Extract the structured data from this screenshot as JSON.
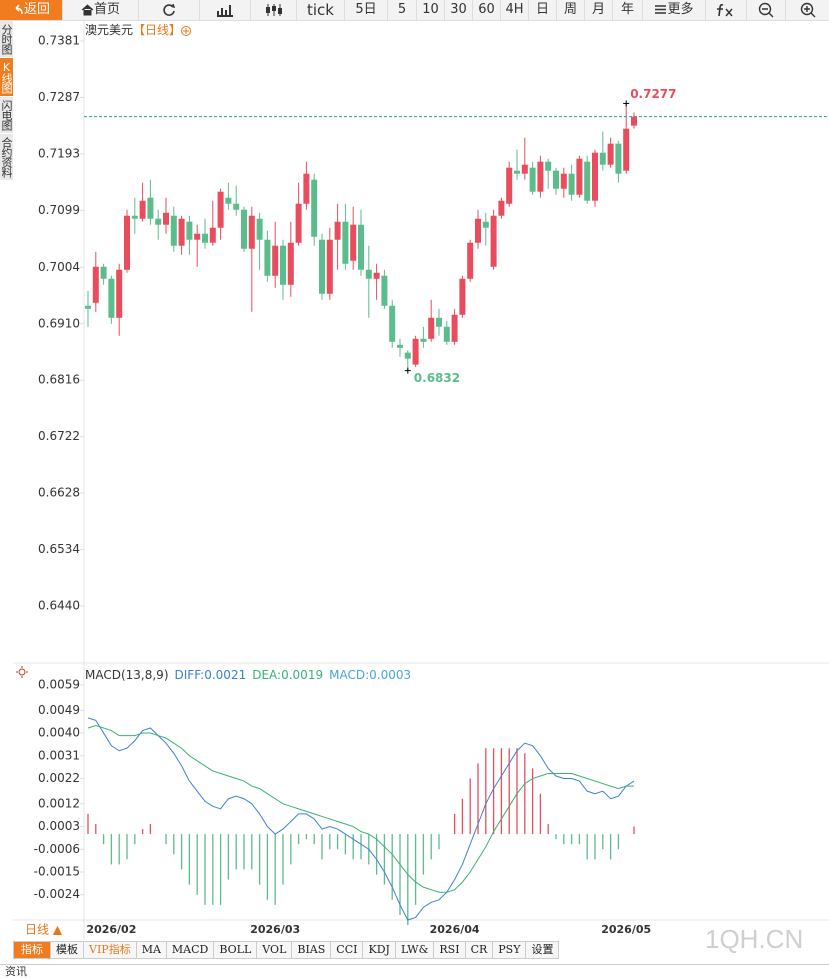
{
  "toolbar": {
    "back": "返回",
    "home": "首页",
    "periods": [
      "tick",
      "5日",
      "5",
      "10",
      "30",
      "60",
      "4H",
      "日",
      "周",
      "月",
      "年"
    ],
    "more": "更多"
  },
  "side_tabs": [
    "分时图",
    "K线图",
    "闪电图",
    "合约资料"
  ],
  "period_tab": "日线 ▲",
  "chart_data": [
    {
      "type": "candlestick",
      "title": "澳元美元",
      "period": "【日线】",
      "categories": [
        null,
        null,
        null,
        "2026/02",
        null,
        null,
        null,
        null,
        null,
        null,
        null,
        null,
        null,
        null,
        null,
        null,
        null,
        null,
        null,
        null,
        null,
        null,
        null,
        null,
        "2026/03",
        null,
        null,
        null,
        null,
        null,
        null,
        null,
        null,
        null,
        null,
        null,
        null,
        null,
        null,
        null,
        null,
        null,
        null,
        null,
        null,
        null,
        null,
        "2026/04",
        null,
        null,
        null,
        null,
        null,
        null,
        null,
        null,
        null,
        null,
        null,
        null,
        null,
        null,
        null,
        null,
        null,
        null,
        null,
        null,
        null,
        "2026/05",
        null
      ],
      "open": [
        0.694,
        0.6945,
        0.7005,
        0.6985,
        0.692,
        0.7,
        0.709,
        0.7085,
        0.712,
        0.7085,
        0.7075,
        0.709,
        0.704,
        0.708,
        0.705,
        0.706,
        0.7045,
        0.707,
        0.712,
        0.711,
        0.71,
        0.7035,
        0.7085,
        0.705,
        0.699,
        0.704,
        0.6975,
        0.7045,
        0.711,
        0.715,
        0.705,
        0.696,
        0.705,
        0.708,
        0.7015,
        0.7075,
        0.7,
        0.6985,
        0.699,
        0.694,
        0.6875,
        0.6862,
        0.6842,
        0.6885,
        0.6885,
        0.692,
        0.6905,
        0.688,
        0.6925,
        0.6985,
        0.7045,
        0.708,
        0.7005,
        0.709,
        0.711,
        0.7165,
        0.716,
        0.717,
        0.713,
        0.718,
        0.7165,
        0.7135,
        0.716,
        0.7125,
        0.718,
        0.7115,
        0.7195,
        0.7175,
        0.721,
        0.7165,
        0.724
      ],
      "high": [
        0.6965,
        0.703,
        0.701,
        0.699,
        0.701,
        0.71,
        0.712,
        0.7145,
        0.715,
        0.71,
        0.712,
        0.7105,
        0.709,
        0.709,
        0.7075,
        0.7085,
        0.7115,
        0.7135,
        0.7145,
        0.714,
        0.7105,
        0.7105,
        0.7095,
        0.7065,
        0.708,
        0.705,
        0.708,
        0.7145,
        0.718,
        0.716,
        0.706,
        0.707,
        0.711,
        0.711,
        0.7105,
        0.71,
        0.704,
        0.701,
        0.7,
        0.695,
        0.6885,
        0.6866,
        0.689,
        0.6905,
        0.695,
        0.6935,
        0.6915,
        0.6935,
        0.699,
        0.705,
        0.71,
        0.7095,
        0.71,
        0.712,
        0.718,
        0.72,
        0.722,
        0.718,
        0.719,
        0.7185,
        0.717,
        0.717,
        0.7175,
        0.719,
        0.719,
        0.72,
        0.723,
        0.722,
        0.7215,
        0.7277,
        0.7262
      ],
      "low": [
        0.6905,
        0.693,
        0.6975,
        0.691,
        0.689,
        0.6995,
        0.706,
        0.708,
        0.7075,
        0.705,
        0.706,
        0.703,
        0.7025,
        0.7025,
        0.7005,
        0.7035,
        0.704,
        0.705,
        0.71,
        0.709,
        0.703,
        0.693,
        0.7,
        0.698,
        0.697,
        0.695,
        0.6955,
        0.704,
        0.71,
        0.704,
        0.695,
        0.695,
        0.7,
        0.7,
        0.7,
        0.699,
        0.692,
        0.695,
        0.6935,
        0.687,
        0.6855,
        0.6832,
        0.6838,
        0.687,
        0.688,
        0.689,
        0.6875,
        0.6875,
        0.692,
        0.698,
        0.7035,
        0.704,
        0.7,
        0.7085,
        0.7105,
        0.715,
        0.715,
        0.7125,
        0.712,
        0.7135,
        0.7125,
        0.712,
        0.7115,
        0.712,
        0.711,
        0.7105,
        0.7165,
        0.717,
        0.7145,
        0.716,
        0.7235
      ],
      "close": [
        0.6935,
        0.7005,
        0.6985,
        0.692,
        0.7,
        0.709,
        0.7085,
        0.7115,
        0.7085,
        0.7075,
        0.7095,
        0.704,
        0.7085,
        0.705,
        0.706,
        0.7045,
        0.707,
        0.713,
        0.711,
        0.71,
        0.7035,
        0.709,
        0.705,
        0.699,
        0.704,
        0.6975,
        0.7045,
        0.711,
        0.716,
        0.7055,
        0.696,
        0.705,
        0.708,
        0.701,
        0.7075,
        0.7,
        0.6985,
        0.6995,
        0.694,
        0.688,
        0.687,
        0.6852,
        0.6885,
        0.688,
        0.692,
        0.6905,
        0.688,
        0.6925,
        0.6985,
        0.7045,
        0.7085,
        0.707,
        0.709,
        0.7115,
        0.717,
        0.716,
        0.7175,
        0.713,
        0.718,
        0.7165,
        0.7135,
        0.716,
        0.7125,
        0.7185,
        0.7115,
        0.7195,
        0.7175,
        0.721,
        0.716,
        0.7235,
        0.7255
      ],
      "up_color": "#e94d5d",
      "down_color": "#5bbd8b",
      "last_price_line_color": "#2a9d9a",
      "ylim": [
        0.6345,
        0.7416
      ],
      "yticks": [
        0.7381,
        0.7287,
        0.7193,
        0.7099,
        0.7004,
        {
          "value": 0.691,
          "label": "0.6910"
        },
        0.6816,
        0.6722,
        0.6628,
        0.6534,
        {
          "value": 0.644,
          "label": "0.6440"
        }
      ]
    },
    {
      "type": "macd",
      "title": "MACD(13,8,9)",
      "series": [
        {
          "name": "DIFF",
          "color": "#3a82d6",
          "values": [
            0.0046,
            0.0045,
            0.004,
            0.0035,
            0.0033,
            0.0034,
            0.0037,
            0.0041,
            0.0042,
            0.0039,
            0.0036,
            0.0032,
            0.0027,
            0.0021,
            0.0017,
            0.0013,
            0.0011,
            0.001,
            0.0014,
            0.0015,
            0.0014,
            0.0012,
            0.0008,
            0.0003,
            0.0,
            0.0002,
            0.0005,
            0.0008,
            0.0008,
            0.0006,
            0.0002,
            0.0003,
            0.0002,
            0.0,
            -0.0002,
            -0.0004,
            -0.0006,
            -0.001,
            -0.0015,
            -0.0021,
            -0.0028,
            -0.0034,
            -0.0033,
            -0.0029,
            -0.0027,
            -0.0026,
            -0.0023,
            -0.0018,
            -0.0012,
            -0.0004,
            0.0004,
            0.0012,
            0.0018,
            0.0023,
            0.0028,
            0.0033,
            0.0036,
            0.0035,
            0.0031,
            0.0026,
            0.0023,
            0.0022,
            0.0022,
            0.0021,
            0.0017,
            0.0016,
            0.0017,
            0.0014,
            0.0015,
            0.0019,
            0.0021
          ]
        },
        {
          "name": "DEA",
          "color": "#3bb273",
          "values": [
            0.0042,
            0.0043,
            0.0042,
            0.0041,
            0.0039,
            0.0039,
            0.0039,
            0.004,
            0.004,
            0.0039,
            0.0038,
            0.0036,
            0.0034,
            0.0031,
            0.0029,
            0.0027,
            0.0025,
            0.0024,
            0.0023,
            0.0022,
            0.0021,
            0.0019,
            0.0018,
            0.0016,
            0.0014,
            0.0012,
            0.0011,
            0.001,
            0.0009,
            0.0008,
            0.0007,
            0.0006,
            0.0005,
            0.0004,
            0.0003,
            0.0001,
            0.0,
            -0.0002,
            -0.0005,
            -0.0008,
            -0.0012,
            -0.0016,
            -0.0019,
            -0.0021,
            -0.0022,
            -0.0023,
            -0.0023,
            -0.0022,
            -0.0019,
            -0.0015,
            -0.001,
            -0.0005,
            0.0001,
            0.0006,
            0.0011,
            0.0016,
            0.002,
            0.0022,
            0.0023,
            0.0024,
            0.0024,
            0.0024,
            0.0024,
            0.0023,
            0.0022,
            0.0021,
            0.002,
            0.0019,
            0.0018,
            0.0019,
            0.0019
          ]
        },
        {
          "name": "MACD",
          "color": "#4aa3df",
          "values": [
            0.0008,
            0.0004,
            -0.0004,
            -0.0012,
            -0.0012,
            -0.001,
            -0.0004,
            0.0002,
            0.0004,
            0.0,
            -0.0004,
            -0.0008,
            -0.0014,
            -0.002,
            -0.0024,
            -0.0028,
            -0.0028,
            -0.0028,
            -0.0018,
            -0.0014,
            -0.0014,
            -0.0014,
            -0.002,
            -0.0026,
            -0.0028,
            -0.002,
            -0.0012,
            -0.0004,
            -0.0002,
            -0.0004,
            -0.001,
            -0.0006,
            -0.0006,
            -0.0008,
            -0.001,
            -0.001,
            -0.0012,
            -0.0016,
            -0.002,
            -0.0026,
            -0.0032,
            -0.0036,
            -0.0028,
            -0.0016,
            -0.001,
            -0.0006,
            0.0,
            0.0008,
            0.0014,
            0.0022,
            0.0028,
            0.0034,
            0.0034,
            0.0034,
            0.0034,
            0.0034,
            0.0032,
            0.0026,
            0.0016,
            0.0004,
            -0.0002,
            -0.0004,
            -0.0004,
            -0.0004,
            -0.001,
            -0.001,
            -0.0006,
            -0.001,
            -0.0006,
            0.0,
            0.0003
          ]
        }
      ],
      "up_color": "#e94d5d",
      "down_color": "#5bbd8b",
      "ylim": [
        -0.0034,
        0.0061
      ],
      "yticks": [
        0.0059,
        0.0049,
        {
          "value": 0.004,
          "label": "0.0040"
        },
        0.0031,
        0.0022,
        0.0012,
        0.0003,
        -0.0006,
        -0.0015,
        -0.0024
      ]
    }
  ],
  "indicator_bar": [
    "指标",
    "模板",
    "VIP指标",
    "MA",
    "MACD",
    "BOLL",
    "VOL",
    "BIAS",
    "CCI",
    "KDJ",
    "LW&",
    "RSI",
    "CR",
    "PSY",
    "设置"
  ],
  "watermark": "1QH.CN",
  "footer": "资讯"
}
